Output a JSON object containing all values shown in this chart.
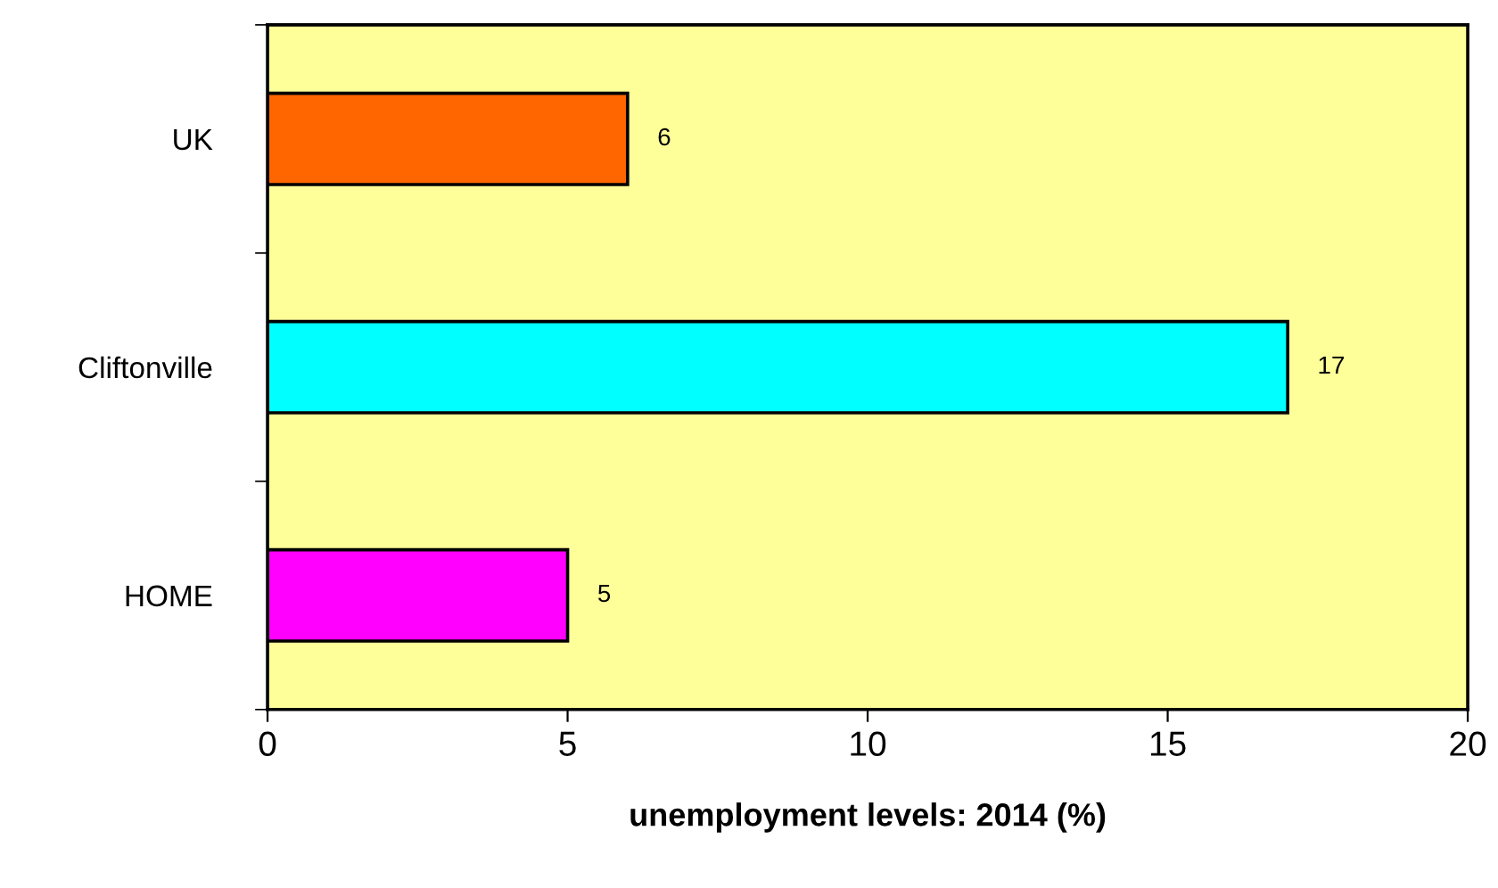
{
  "chart_data": {
    "type": "bar",
    "orientation": "horizontal",
    "xlabel": "unemployment levels: 2014 (%)",
    "categories": [
      "UK",
      "Cliftonville",
      "HOME"
    ],
    "values": [
      6,
      17,
      5
    ],
    "colors": [
      "#ff6600",
      "#00ffff",
      "#ff00ff"
    ],
    "xlim": [
      0,
      20
    ],
    "xticks": [
      0,
      5,
      10,
      15,
      20
    ],
    "data_labels": true,
    "grid": false,
    "legend": false
  }
}
